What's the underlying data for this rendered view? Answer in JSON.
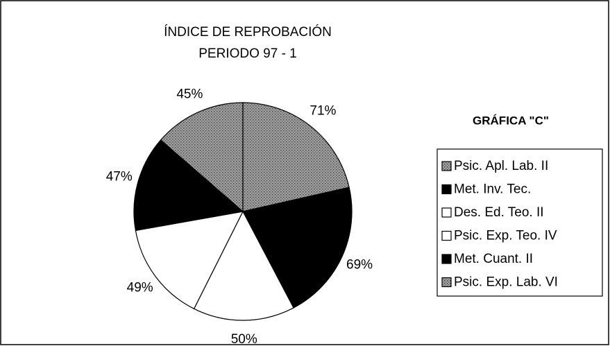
{
  "chart_data": {
    "type": "pie",
    "title": "ÍNDICE DE REPROBACIÓN",
    "subtitle": "PERIODO 97 - 1",
    "legend_title": "GRÁFICA \"C\"",
    "categories": [
      "Psic. Apl. Lab. II",
      "Met. Inv. Tec.",
      "Des. Ed. Teo. II",
      "Psic. Exp. Teo. IV",
      "Met. Cuant. II",
      "Psic. Exp. Lab. VI"
    ],
    "values": [
      71,
      69,
      50,
      49,
      47,
      45
    ],
    "value_labels": [
      "71%",
      "69%",
      "50%",
      "49%",
      "47%",
      "45%"
    ],
    "colors": [
      "#8c8c8c",
      "#000000",
      "#ffffff",
      "#ffffff",
      "#000000",
      "#8c8c8c"
    ],
    "legend": "right"
  }
}
